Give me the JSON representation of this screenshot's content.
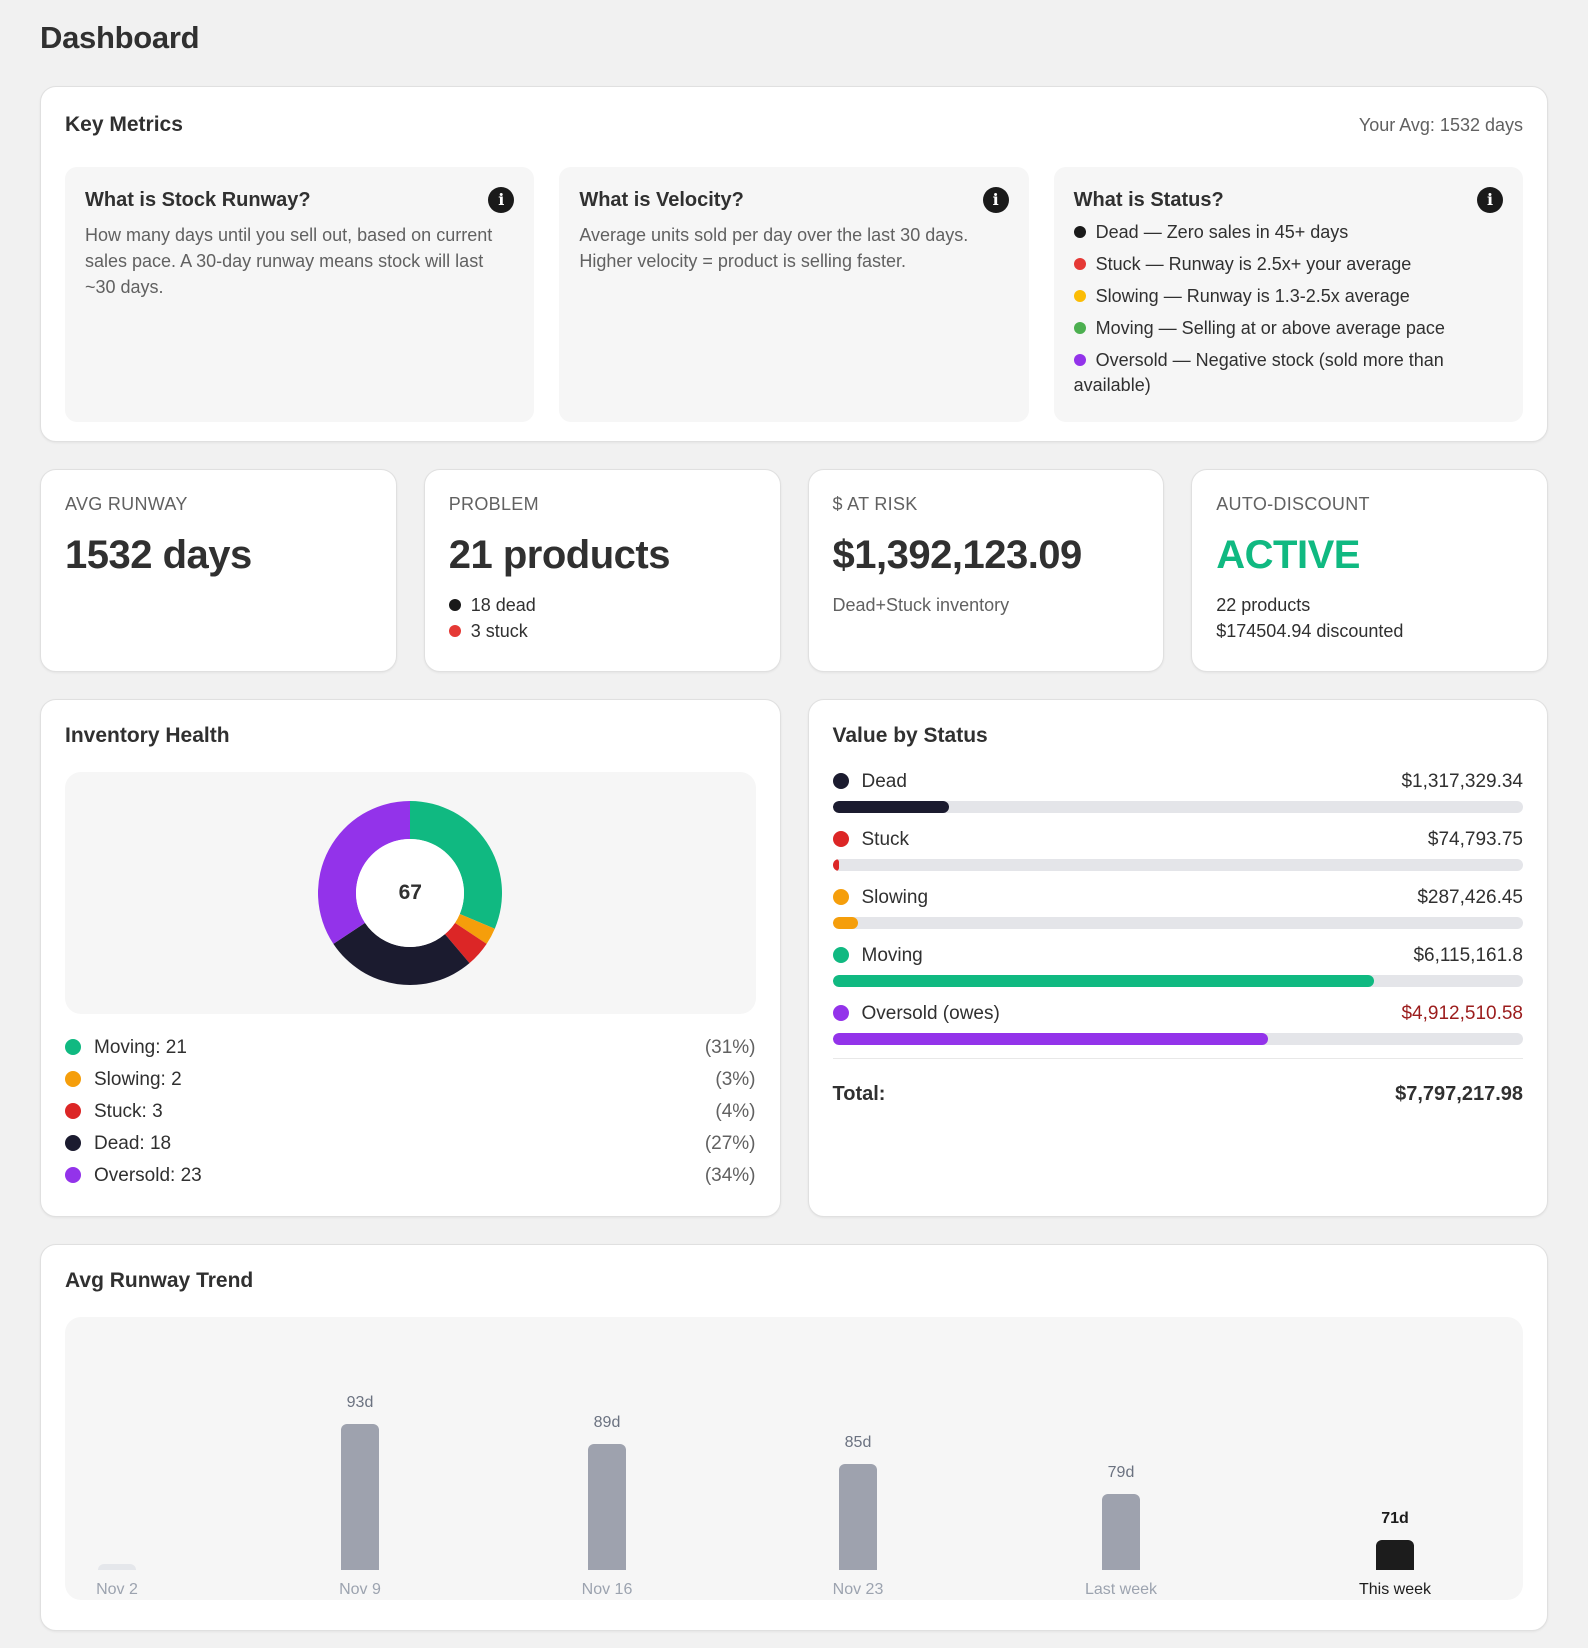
{
  "page": {
    "title": "Dashboard"
  },
  "key_metrics": {
    "title": "Key Metrics",
    "your_avg": "Your Avg: 1532 days",
    "boxes": [
      {
        "title": "What is Stock Runway?",
        "text": "How many days until you sell out, based on current sales pace. A 30-day runway means stock will last ~30 days.",
        "icon": "info-icon"
      },
      {
        "title": "What is Velocity?",
        "text": "Average units sold per day over the last 30 days. Higher velocity = product is selling faster.",
        "icon": "info-icon"
      },
      {
        "title": "What is Status?",
        "icon": "info-icon",
        "items": [
          {
            "text": "Dead — Zero sales in 45+ days",
            "color": "#1a1a1a"
          },
          {
            "text": "Stuck — Runway is 2.5x+ your average",
            "color": "#e53935"
          },
          {
            "text": "Slowing — Runway is 1.3-2.5x average",
            "color": "#fbbc05"
          },
          {
            "text": "Moving — Selling at or above average pace",
            "color": "#4caf50"
          },
          {
            "text": "Oversold — Negative stock (sold more than available)",
            "color": "#9333ea"
          }
        ]
      }
    ]
  },
  "stats": {
    "avg_runway": {
      "label": "AVG RUNWAY",
      "value": "1532 days"
    },
    "problem": {
      "label": "PROBLEM",
      "value": "21 products",
      "dead": "18 dead",
      "stuck": "3 stuck",
      "dead_color": "#1a1a1a",
      "stuck_color": "#e53935"
    },
    "at_risk": {
      "label": "$ AT RISK",
      "value": "$1,392,123.09",
      "sub": "Dead+Stuck inventory"
    },
    "auto_discount": {
      "label": "AUTO-DISCOUNT",
      "value": "ACTIVE",
      "products": "22 products",
      "discounted": "$174504.94 discounted"
    }
  },
  "inventory_health": {
    "title": "Inventory Health",
    "total": "67",
    "legend": [
      {
        "label": "Moving: 21",
        "pct": "(31%)",
        "color": "#10b981"
      },
      {
        "label": "Slowing: 2",
        "pct": "(3%)",
        "color": "#f59e0b"
      },
      {
        "label": "Stuck: 3",
        "pct": "(4%)",
        "color": "#dc2626"
      },
      {
        "label": "Dead: 18",
        "pct": "(27%)",
        "color": "#1b1b2f"
      },
      {
        "label": "Oversold: 23",
        "pct": "(34%)",
        "color": "#9333ea"
      }
    ]
  },
  "value_by_status": {
    "title": "Value by Status",
    "items": [
      {
        "label": "Dead",
        "value": "$1,317,329.34",
        "color": "#1b1b2f",
        "pct": 16.9,
        "value_color": "#303030"
      },
      {
        "label": "Stuck",
        "value": "$74,793.75",
        "color": "#dc2626",
        "pct": 1.0,
        "value_color": "#303030"
      },
      {
        "label": "Slowing",
        "value": "$287,426.45",
        "color": "#f59e0b",
        "pct": 3.7,
        "value_color": "#303030"
      },
      {
        "label": "Moving",
        "value": "$6,115,161.8",
        "color": "#10b981",
        "pct": 78.4,
        "value_color": "#303030"
      },
      {
        "label": "Oversold (owes)",
        "value": "$4,912,510.58",
        "color": "#9333ea",
        "pct": 63.0,
        "value_color": "#9b1c1c"
      }
    ],
    "total_label": "Total:",
    "total_value": "$7,797,217.98"
  },
  "trend": {
    "title": "Avg Runway Trend",
    "bars": [
      {
        "label": "Nov 2",
        "value_label": "",
        "value": 0
      },
      {
        "label": "Nov 9",
        "value_label": "93d",
        "value": 93
      },
      {
        "label": "Nov 16",
        "value_label": "89d",
        "value": 89
      },
      {
        "label": "Nov 23",
        "value_label": "85d",
        "value": 85
      },
      {
        "label": "Last week",
        "value_label": "79d",
        "value": 79
      },
      {
        "label": "This week",
        "value_label": "71d",
        "value": 71
      }
    ]
  },
  "chart_data": [
    {
      "type": "pie",
      "title": "Inventory Health",
      "categories": [
        "Moving",
        "Slowing",
        "Stuck",
        "Dead",
        "Oversold"
      ],
      "values": [
        21,
        2,
        3,
        18,
        23
      ],
      "percentages": [
        31,
        3,
        4,
        27,
        34
      ],
      "center_label": "67",
      "colors": [
        "#10b981",
        "#f59e0b",
        "#dc2626",
        "#1b1b2f",
        "#9333ea"
      ],
      "legend_position": "bottom"
    },
    {
      "type": "bar",
      "title": "Value by Status",
      "orientation": "horizontal",
      "categories": [
        "Dead",
        "Stuck",
        "Slowing",
        "Moving",
        "Oversold (owes)"
      ],
      "values": [
        1317329.34,
        74793.75,
        287426.45,
        6115161.8,
        4912510.58
      ],
      "total": 7797217.98
    },
    {
      "type": "bar",
      "title": "Avg Runway Trend",
      "categories": [
        "Nov 2",
        "Nov 9",
        "Nov 16",
        "Nov 23",
        "Last week",
        "This week"
      ],
      "values": [
        0,
        93,
        89,
        85,
        79,
        71
      ],
      "value_suffix": "d",
      "grid": false
    }
  ]
}
